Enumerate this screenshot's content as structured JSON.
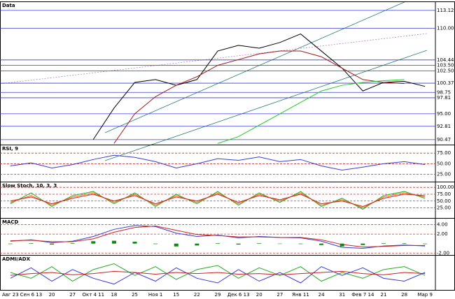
{
  "chart_data": [
    {
      "type": "line",
      "title": "Data",
      "categories": [
        "Авг 23",
        "Сен 6 13",
        "20",
        "27",
        "Окт 4 11",
        "18",
        "25",
        "Ноя 1",
        "15",
        "22",
        "29",
        "Дек 6 13",
        "20",
        "27",
        "Янв 11",
        "24",
        "31",
        "Фев 7 14",
        "21",
        "28",
        "Мар 9"
      ],
      "ylim": [
        89.6,
        114.7
      ],
      "yticks": [
        {
          "value": 90.47,
          "label": "90.47"
        },
        {
          "value": 92.81,
          "label": "92.81"
        },
        {
          "value": 95,
          "label": "95.00"
        },
        {
          "value": 97.81,
          "label": "97.81"
        },
        {
          "value": 98.75,
          "label": "98.75"
        },
        {
          "value": 100.37,
          "label": "100.37"
        },
        {
          "value": 102.5,
          "label": "102.50"
        },
        {
          "value": 103.5,
          "label": "103.50"
        },
        {
          "value": 104.44,
          "label": "104.44"
        },
        {
          "value": 110,
          "label": "110.00"
        },
        {
          "value": 113.12,
          "label": "113.12"
        }
      ],
      "grid_color": "#3a3ad0",
      "series": [
        {
          "color": "#000000",
          "values": [
            null,
            null,
            null,
            null,
            90.5,
            96,
            100.5,
            101,
            100,
            101,
            106,
            107,
            106.5,
            107.5,
            109,
            106,
            103,
            99,
            100.5,
            100.7,
            99.8
          ]
        },
        {
          "color": "#a01818",
          "values": [
            null,
            null,
            null,
            null,
            null,
            89.8,
            95,
            98,
            100,
            101.5,
            103.5,
            104.5,
            105.5,
            106,
            106,
            105,
            103,
            101,
            100.5,
            100.3,
            null
          ]
        },
        {
          "color": "#22cc22",
          "values": [
            null,
            null,
            null,
            null,
            null,
            null,
            null,
            null,
            null,
            null,
            89.8,
            91,
            93,
            95,
            97,
            99,
            100,
            100.5,
            100.8,
            101,
            null
          ]
        }
      ]
    },
    {
      "type": "line",
      "title": "RSI, 9",
      "ylim": [
        8,
        95
      ],
      "yticks": [
        {
          "value": 25,
          "label": "25.00"
        },
        {
          "value": 50,
          "label": "50.00"
        },
        {
          "value": 75,
          "label": "75.00"
        }
      ],
      "grid_color": "#cc3333",
      "series": [
        {
          "color": "#3a3ad0",
          "values": [
            45,
            52,
            40,
            48,
            60,
            70,
            65,
            55,
            40,
            50,
            62,
            58,
            66,
            55,
            60,
            45,
            35,
            42,
            50,
            55,
            48
          ]
        }
      ]
    },
    {
      "type": "line",
      "title": "Slow Stoch, 10, 3, 3",
      "ylim": [
        -12,
        121
      ],
      "yticks": [
        {
          "value": 25,
          "label": "25.00"
        },
        {
          "value": 50,
          "label": "50.00"
        },
        {
          "value": 75,
          "label": "75.00"
        },
        {
          "value": 100,
          "label": "100.00"
        }
      ],
      "grid_color": "#cc3333",
      "series": [
        {
          "color": "#22aa22",
          "values": [
            40,
            80,
            30,
            70,
            85,
            40,
            80,
            30,
            75,
            40,
            85,
            35,
            80,
            45,
            85,
            30,
            60,
            20,
            70,
            85,
            60
          ]
        },
        {
          "color": "#e07020",
          "values": [
            45,
            70,
            35,
            65,
            80,
            45,
            75,
            35,
            70,
            45,
            80,
            40,
            75,
            50,
            80,
            35,
            55,
            25,
            65,
            80,
            65
          ]
        },
        {
          "color": "#cc2222",
          "values": [
            50,
            65,
            40,
            60,
            75,
            50,
            70,
            40,
            65,
            50,
            75,
            45,
            70,
            55,
            75,
            40,
            50,
            30,
            60,
            75,
            70
          ]
        }
      ]
    },
    {
      "type": "line",
      "title": "MACD",
      "ylim": [
        -2.4,
        5.4
      ],
      "yticks": [
        {
          "value": -2,
          "label": "-2.00"
        },
        {
          "value": 2,
          "label": "2.00"
        },
        {
          "value": 4,
          "label": "4.00"
        }
      ],
      "grid_color": "#cc3333",
      "series": [
        {
          "color": "#3a3ad0",
          "values": [
            0.5,
            0.8,
            0.2,
            0.5,
            1.5,
            3,
            3.8,
            3.6,
            2.2,
            1.5,
            1.8,
            1.2,
            1.5,
            1.3,
            1.2,
            0.5,
            -0.8,
            -1,
            -0.5,
            -0.3,
            -0.5
          ]
        },
        {
          "color": "#cc2222",
          "values": [
            0.6,
            0.7,
            0.4,
            0.4,
            1,
            2.4,
            3.4,
            3.7,
            2.8,
            1.9,
            1.7,
            1.4,
            1.4,
            1.3,
            1.3,
            0.8,
            -0.2,
            -0.7,
            -0.6,
            -0.4,
            -0.4
          ]
        },
        {
          "type": "bar",
          "color": "#118811",
          "values": [
            -0.1,
            0.1,
            -0.2,
            0.1,
            0.5,
            0.6,
            0.4,
            -0.1,
            -0.6,
            -0.4,
            0.1,
            -0.2,
            0.1,
            0,
            -0.1,
            -0.3,
            -0.6,
            -0.3,
            0.1,
            0.1,
            -0.1
          ]
        }
      ]
    },
    {
      "type": "line",
      "title": "ADMI/ADX",
      "ylim": [
        0,
        60
      ],
      "yticks": [],
      "series": [
        {
          "color": "#22aa22",
          "values": [
            30,
            20,
            40,
            15,
            35,
            45,
            25,
            40,
            18,
            35,
            42,
            20,
            38,
            25,
            40,
            15,
            30,
            20,
            35,
            40,
            25
          ]
        },
        {
          "color": "#3a3ad0",
          "values": [
            20,
            38,
            15,
            35,
            20,
            10,
            30,
            15,
            38,
            20,
            12,
            35,
            15,
            30,
            12,
            40,
            25,
            38,
            20,
            15,
            30
          ]
        },
        {
          "color": "#cc2222",
          "values": [
            25,
            28,
            30,
            26,
            28,
            32,
            30,
            27,
            30,
            28,
            30,
            27,
            28,
            26,
            28,
            30,
            32,
            28,
            26,
            30,
            28
          ]
        }
      ]
    }
  ]
}
